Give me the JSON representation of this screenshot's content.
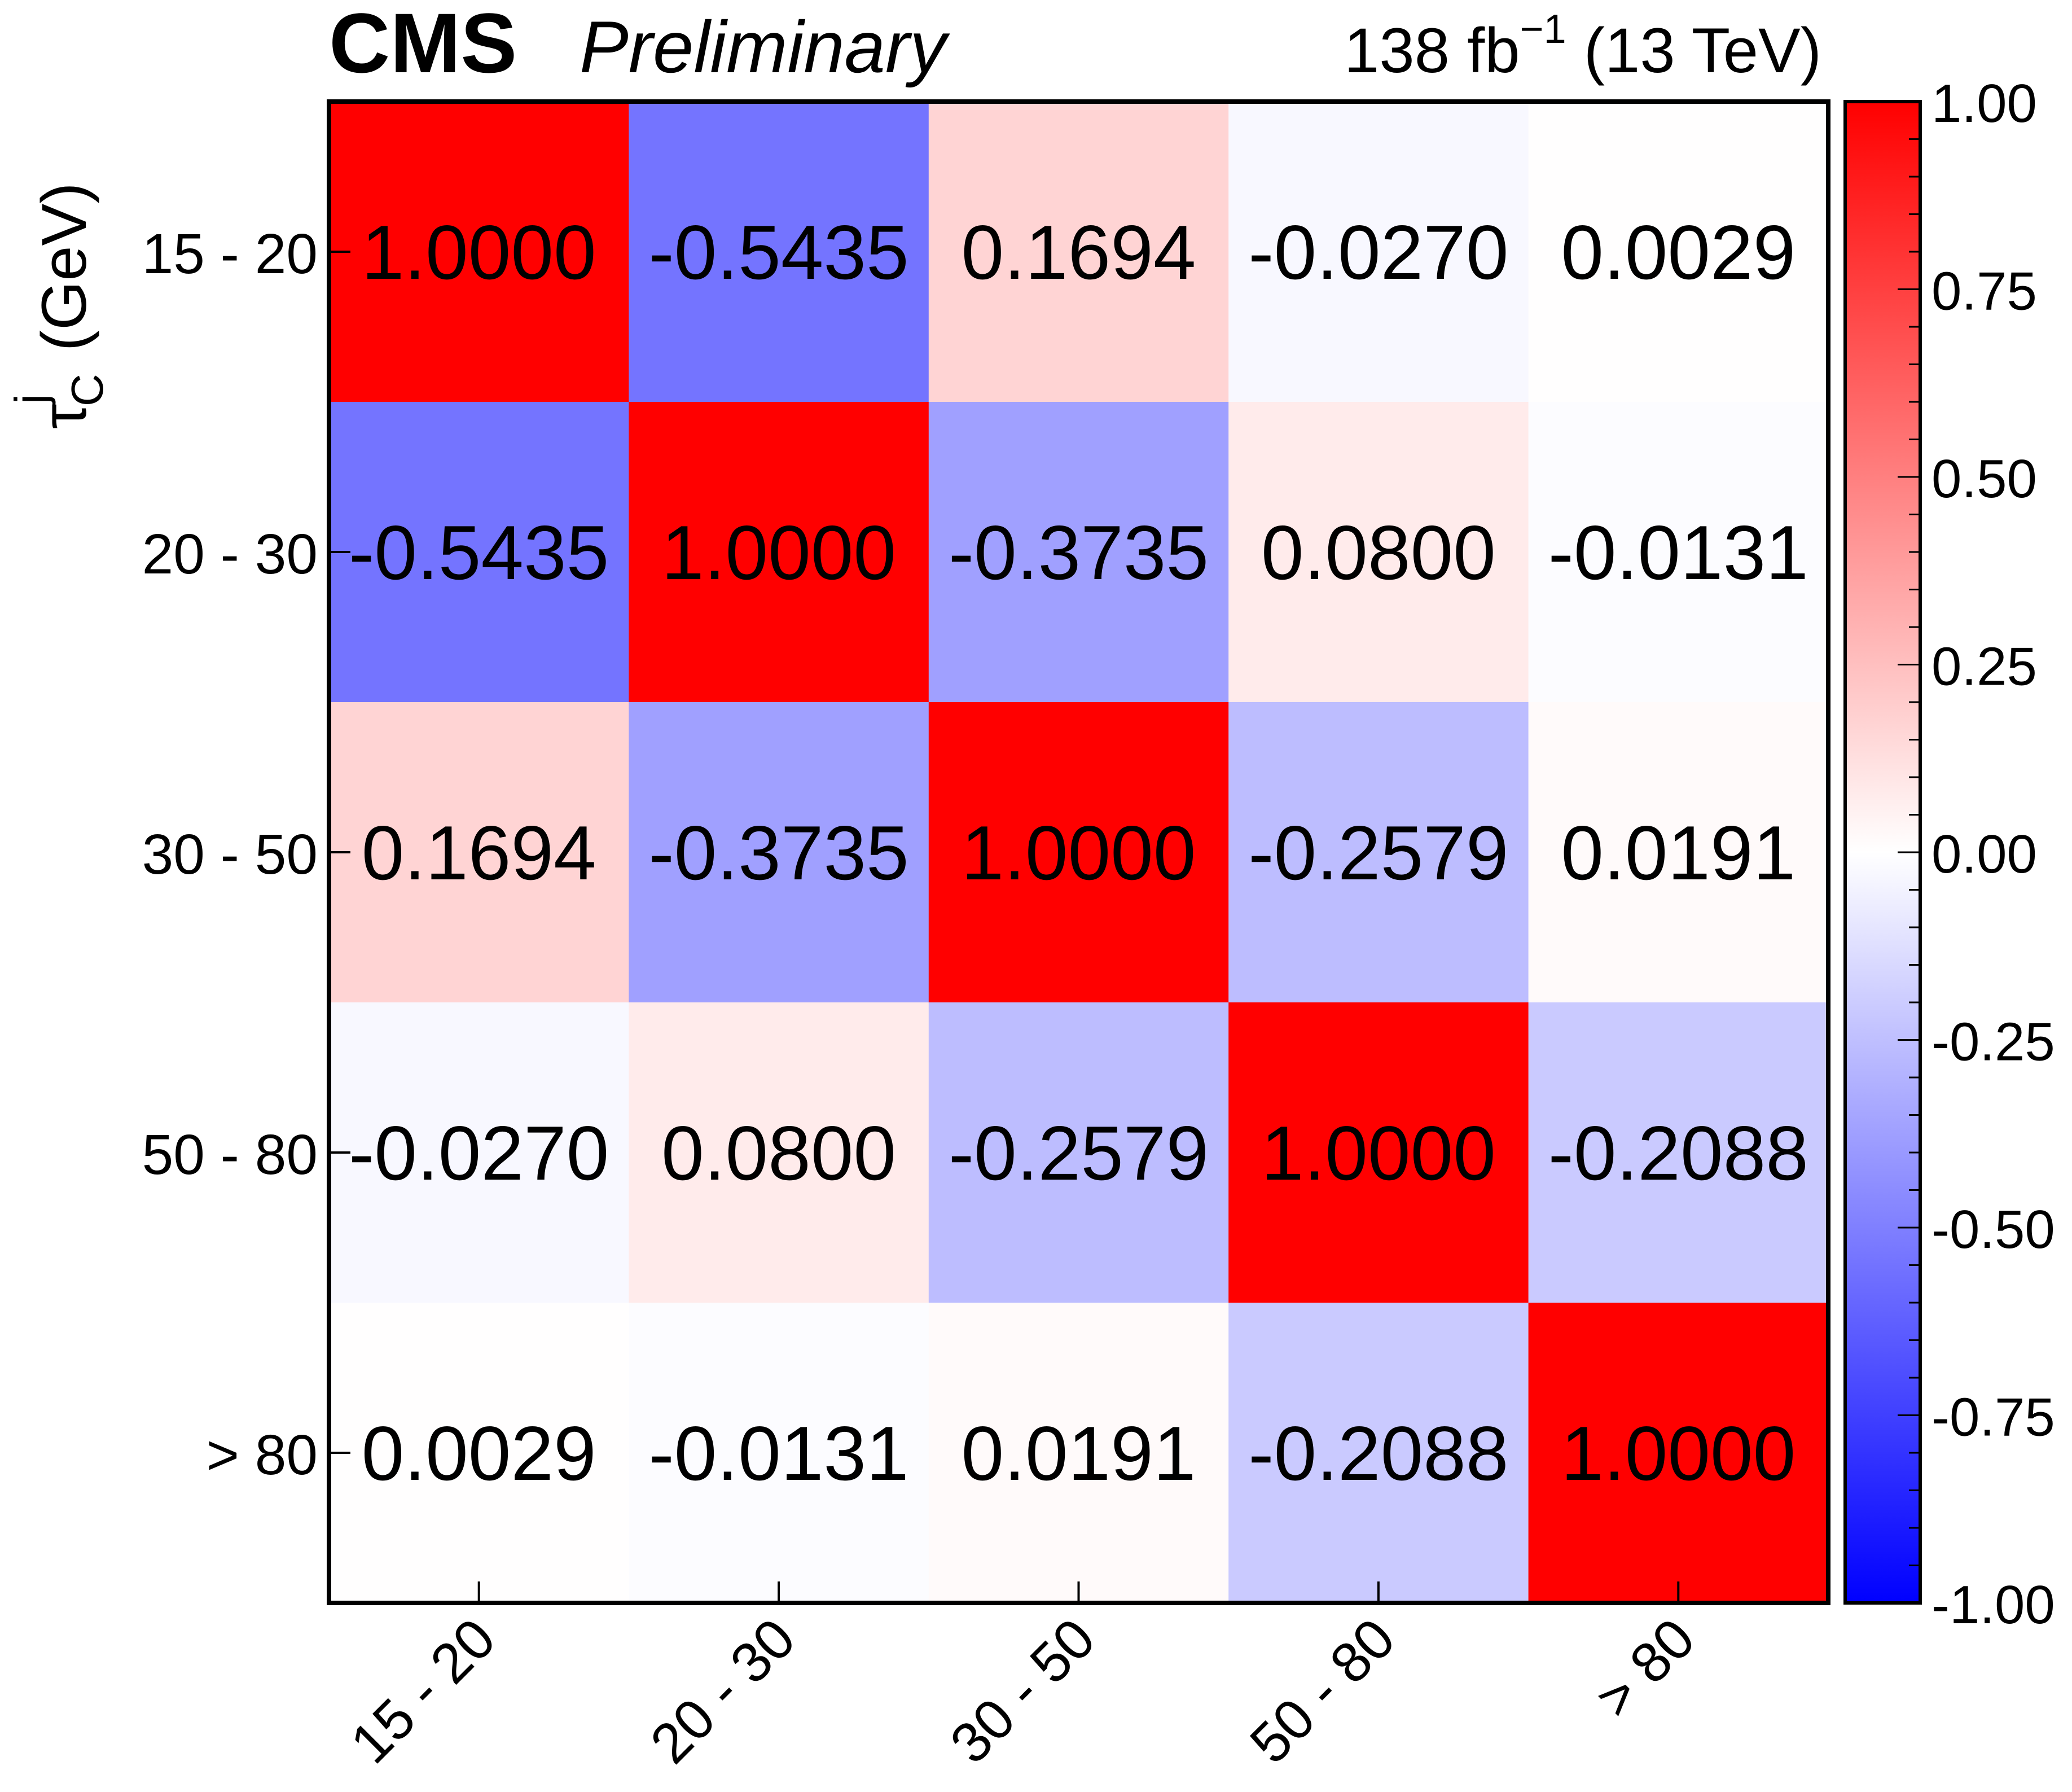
{
  "header": {
    "experiment": "CMS",
    "status": "Preliminary",
    "lumi_prefix": "138 fb",
    "lumi_exp": "−1",
    "lumi_suffix": " (13 TeV)"
  },
  "chart_data": {
    "type": "heatmap",
    "title": "",
    "xlabel": "",
    "ylabel_symbol": "τ",
    "ylabel_sup": "j",
    "ylabel_sub": "C",
    "ylabel_unit": "(GeV)",
    "x_categories": [
      "15 - 20",
      "20 - 30",
      "30 - 50",
      "50 - 80",
      "> 80"
    ],
    "y_categories": [
      "15 - 20",
      "20 - 30",
      "30 - 50",
      "50 - 80",
      "> 80"
    ],
    "values": [
      [
        1.0,
        -0.5435,
        0.1694,
        -0.027,
        0.0029
      ],
      [
        -0.5435,
        1.0,
        -0.3735,
        0.08,
        -0.0131
      ],
      [
        0.1694,
        -0.3735,
        1.0,
        -0.2579,
        0.0191
      ],
      [
        -0.027,
        0.08,
        -0.2579,
        1.0,
        -0.2088
      ],
      [
        0.0029,
        -0.0131,
        0.0191,
        -0.2088,
        1.0
      ]
    ],
    "labels": [
      [
        "1.0000",
        "-0.5435",
        "0.1694",
        "-0.0270",
        "0.0029"
      ],
      [
        "-0.5435",
        "1.0000",
        "-0.3735",
        "0.0800",
        "-0.0131"
      ],
      [
        "0.1694",
        "-0.3735",
        "1.0000",
        "-0.2579",
        "0.0191"
      ],
      [
        "-0.0270",
        "0.0800",
        "-0.2579",
        "1.0000",
        "-0.2088"
      ],
      [
        "0.0029",
        "-0.0131",
        "0.0191",
        "-0.2088",
        "1.0000"
      ]
    ],
    "zlim": [
      -1.0,
      1.0
    ],
    "colorbar_ticks": [
      "1.00",
      "0.75",
      "0.50",
      "0.25",
      "0.00",
      "-0.25",
      "-0.50",
      "-0.75",
      "-1.00"
    ],
    "colors": {
      "low": "#0000ff",
      "mid": "#ffffff",
      "high": "#ff0000"
    },
    "grid": false,
    "legend": "colorbar-right"
  }
}
